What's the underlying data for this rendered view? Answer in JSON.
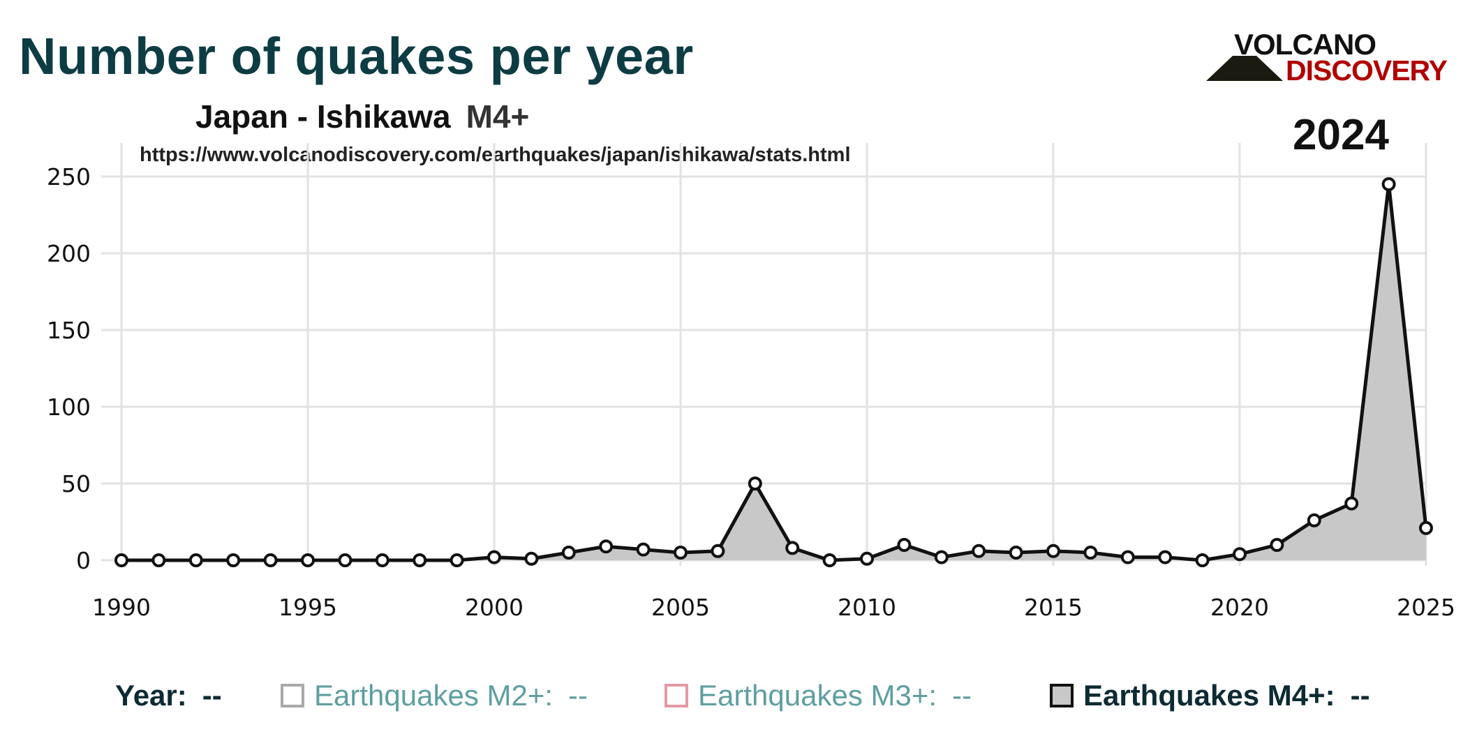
{
  "header": {
    "title": "Number of quakes per year",
    "subtitle_region": "Japan - Ishikawa",
    "subtitle_magnitude": "M4+",
    "url": "https://www.volcanodiscovery.com/earthquakes/japan/ishikawa/stats.html",
    "highlight_year": "2024"
  },
  "logo": {
    "line1": "VOLCANO",
    "line2": "DISCOVERY",
    "color_top": "#111111",
    "color_bottom": "#b00000"
  },
  "legend": {
    "year_label": "Year:",
    "year_value": "--",
    "items": [
      {
        "label": "Earthquakes M2+:",
        "value": "--",
        "color": "#a9a9a9"
      },
      {
        "label": "Earthquakes M3+:",
        "value": "--",
        "color": "#e39aa3"
      },
      {
        "label": "Earthquakes M4+:",
        "value": "--",
        "color": "#111111"
      }
    ]
  },
  "chart_data": {
    "type": "area",
    "xlim": [
      1990,
      2025
    ],
    "ylim": [
      0,
      270
    ],
    "xticks": [
      1990,
      1995,
      2000,
      2005,
      2010,
      2015,
      2020,
      2025
    ],
    "yticks": [
      0,
      50,
      100,
      150,
      200,
      250
    ],
    "grid": true,
    "fill_color": "#c8c8c8",
    "line_color": "#111111",
    "series": [
      {
        "name": "Earthquakes M4+",
        "x": [
          1990,
          1991,
          1992,
          1993,
          1994,
          1995,
          1996,
          1997,
          1998,
          1999,
          2000,
          2001,
          2002,
          2003,
          2004,
          2005,
          2006,
          2007,
          2008,
          2009,
          2010,
          2011,
          2012,
          2013,
          2014,
          2015,
          2016,
          2017,
          2018,
          2019,
          2020,
          2021,
          2022,
          2023,
          2024,
          2025
        ],
        "values": [
          0,
          0,
          0,
          0,
          0,
          0,
          0,
          0,
          0,
          0,
          2,
          1,
          5,
          9,
          7,
          5,
          6,
          50,
          8,
          0,
          1,
          10,
          2,
          6,
          5,
          6,
          5,
          2,
          2,
          0,
          4,
          10,
          26,
          37,
          245,
          21
        ]
      }
    ]
  }
}
